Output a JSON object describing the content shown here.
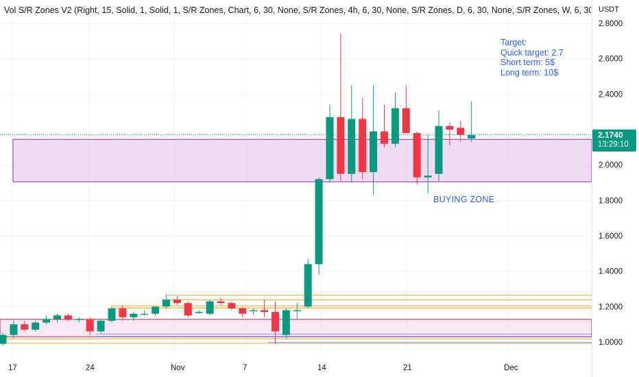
{
  "indicator": {
    "title": "Vol S/R Zones V2 (Right, 15, Solid, 1, Solid, 1, S/R Zones, Chart, 6, 30, None, S/R Zones, 4h, 6, 30, None, S/R Zones, D, 6, 30, None, S/R Zones, W, 6, 30,"
  },
  "price_axis": {
    "unit": "USDT"
  },
  "last_price": {
    "value": "2.1740",
    "countdown": "13:29:10",
    "color": "#089981"
  },
  "annotations": {
    "target_lines": [
      "Target:",
      "Quick target: 2.7",
      "Short term: 5$",
      "Long term: 10$"
    ],
    "buying_zone": "BUYING ZONE"
  },
  "colors": {
    "up": "#089981",
    "down": "#f23645",
    "zone_fill": "#e1bee7",
    "zone_border": "#9c27b0",
    "annotation": "#2962ff",
    "orange_level": "#ff9800",
    "blue_level": "#2962ff"
  },
  "chart_data": {
    "type": "candlestick",
    "ylim": [
      0.97,
      2.85
    ],
    "y_ticks": [
      "2.8000",
      "2.6000",
      "2.4000",
      "2.0000",
      "1.8000",
      "1.6000",
      "1.4000",
      "1.2000",
      "1.0000"
    ],
    "x_ticks": [
      "17",
      "24",
      "Nov",
      "7",
      "14",
      "21",
      "Dec"
    ],
    "candles": [
      {
        "d": "Oct 17",
        "o": 0.99,
        "h": 1.05,
        "l": 0.98,
        "c": 1.04
      },
      {
        "d": "Oct 18",
        "o": 1.04,
        "h": 1.12,
        "l": 1.02,
        "c": 1.1
      },
      {
        "d": "Oct 19",
        "o": 1.1,
        "h": 1.12,
        "l": 1.06,
        "c": 1.07
      },
      {
        "d": "Oct 20",
        "o": 1.07,
        "h": 1.12,
        "l": 1.06,
        "c": 1.11
      },
      {
        "d": "Oct 21",
        "o": 1.11,
        "h": 1.15,
        "l": 1.1,
        "c": 1.13
      },
      {
        "d": "Oct 22",
        "o": 1.13,
        "h": 1.16,
        "l": 1.11,
        "c": 1.15
      },
      {
        "d": "Oct 23",
        "o": 1.15,
        "h": 1.16,
        "l": 1.12,
        "c": 1.13
      },
      {
        "d": "Oct 24",
        "o": 1.13,
        "h": 1.14,
        "l": 1.11,
        "c": 1.13
      },
      {
        "d": "Oct 25",
        "o": 1.13,
        "h": 1.14,
        "l": 1.04,
        "c": 1.06
      },
      {
        "d": "Oct 26",
        "o": 1.06,
        "h": 1.13,
        "l": 1.05,
        "c": 1.12
      },
      {
        "d": "Oct 27",
        "o": 1.12,
        "h": 1.2,
        "l": 1.11,
        "c": 1.19
      },
      {
        "d": "Oct 28",
        "o": 1.19,
        "h": 1.21,
        "l": 1.12,
        "c": 1.14
      },
      {
        "d": "Oct 29",
        "o": 1.14,
        "h": 1.17,
        "l": 1.12,
        "c": 1.16
      },
      {
        "d": "Oct 30",
        "o": 1.16,
        "h": 1.18,
        "l": 1.15,
        "c": 1.16
      },
      {
        "d": "Oct 31",
        "o": 1.16,
        "h": 1.2,
        "l": 1.15,
        "c": 1.2
      },
      {
        "d": "Nov 1",
        "o": 1.2,
        "h": 1.27,
        "l": 1.19,
        "c": 1.24
      },
      {
        "d": "Nov 2",
        "o": 1.24,
        "h": 1.26,
        "l": 1.21,
        "c": 1.22
      },
      {
        "d": "Nov 3",
        "o": 1.22,
        "h": 1.23,
        "l": 1.14,
        "c": 1.15
      },
      {
        "d": "Nov 4",
        "o": 1.17,
        "h": 1.18,
        "l": 1.16,
        "c": 1.17
      },
      {
        "d": "Nov 5",
        "o": 1.16,
        "h": 1.24,
        "l": 1.15,
        "c": 1.23
      },
      {
        "d": "Nov 6",
        "o": 1.23,
        "h": 1.25,
        "l": 1.21,
        "c": 1.22
      },
      {
        "d": "Nov 7",
        "o": 1.22,
        "h": 1.23,
        "l": 1.18,
        "c": 1.19
      },
      {
        "d": "Nov 8",
        "o": 1.19,
        "h": 1.2,
        "l": 1.14,
        "c": 1.16
      },
      {
        "d": "Nov 9",
        "o": 1.18,
        "h": 1.19,
        "l": 1.15,
        "c": 1.18
      },
      {
        "d": "Nov 10",
        "o": 1.18,
        "h": 1.24,
        "l": 1.14,
        "c": 1.17
      },
      {
        "d": "Nov 11",
        "o": 1.17,
        "h": 1.23,
        "l": 0.99,
        "c": 1.06
      },
      {
        "d": "Nov 12",
        "o": 1.04,
        "h": 1.19,
        "l": 1.02,
        "c": 1.18
      },
      {
        "d": "Nov 13",
        "o": 1.18,
        "h": 1.22,
        "l": 1.13,
        "c": 1.18
      },
      {
        "d": "Nov 14",
        "o": 1.2,
        "h": 1.47,
        "l": 1.19,
        "c": 1.44
      },
      {
        "d": "Nov 15",
        "o": 1.44,
        "h": 1.93,
        "l": 1.38,
        "c": 1.92
      },
      {
        "d": "Nov 16",
        "o": 1.92,
        "h": 2.34,
        "l": 1.9,
        "c": 2.27
      },
      {
        "d": "Nov 17",
        "o": 2.27,
        "h": 2.74,
        "l": 1.91,
        "c": 1.95
      },
      {
        "d": "Nov 18",
        "o": 1.95,
        "h": 2.45,
        "l": 1.9,
        "c": 2.26
      },
      {
        "d": "Nov 19",
        "o": 2.26,
        "h": 2.38,
        "l": 1.92,
        "c": 1.96
      },
      {
        "d": "Nov 20",
        "o": 1.96,
        "h": 2.45,
        "l": 1.83,
        "c": 2.19
      },
      {
        "d": "Nov 21",
        "o": 2.19,
        "h": 2.34,
        "l": 2.1,
        "c": 2.12
      },
      {
        "d": "Nov 22",
        "o": 2.12,
        "h": 2.41,
        "l": 2.1,
        "c": 2.32
      },
      {
        "d": "Nov 23",
        "o": 2.32,
        "h": 2.45,
        "l": 2.18,
        "c": 2.18
      },
      {
        "d": "Nov 24",
        "o": 2.18,
        "h": 2.19,
        "l": 1.89,
        "c": 1.93
      },
      {
        "d": "Nov 25",
        "o": 1.93,
        "h": 2.17,
        "l": 1.84,
        "c": 1.94
      },
      {
        "d": "Nov 26",
        "o": 1.95,
        "h": 2.31,
        "l": 1.91,
        "c": 2.22
      },
      {
        "d": "Nov 27",
        "o": 2.22,
        "h": 2.24,
        "l": 2.11,
        "c": 2.2
      },
      {
        "d": "Nov 28",
        "o": 2.21,
        "h": 2.25,
        "l": 2.13,
        "c": 2.17
      },
      {
        "d": "Nov 29",
        "o": 2.15,
        "h": 2.36,
        "l": 2.13,
        "c": 2.17
      }
    ]
  }
}
